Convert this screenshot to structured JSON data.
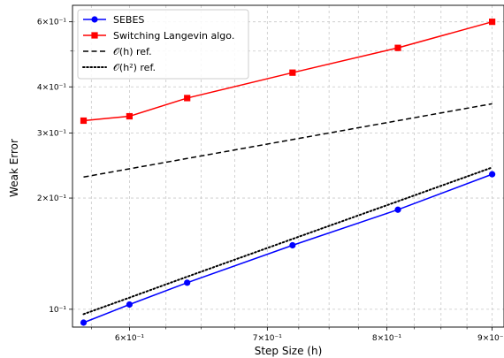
{
  "chart_data": {
    "type": "line",
    "xscale": "log",
    "yscale": "log",
    "xlabel": "Step Size (h)",
    "ylabel": "Weak Error",
    "xlim": [
      0.563,
      0.912
    ],
    "ylim": [
      0.0895,
      0.665
    ],
    "grid": true,
    "legend_position": "top-left",
    "x_ticks": [
      {
        "value": 0.6,
        "label": "6×10⁻¹"
      },
      {
        "value": 0.7,
        "label": "7×10⁻¹"
      },
      {
        "value": 0.8,
        "label": "8×10⁻¹"
      },
      {
        "value": 0.9,
        "label": "9×10⁻¹"
      }
    ],
    "y_ticks": [
      {
        "value": 0.1,
        "label": "10⁻¹"
      },
      {
        "value": 0.2,
        "label": "2×10⁻¹"
      },
      {
        "value": 0.3,
        "label": "3×10⁻¹"
      },
      {
        "value": 0.4,
        "label": "4×10⁻¹"
      },
      {
        "value": 0.6,
        "label": "6×10⁻¹"
      }
    ],
    "x_minor_grid": [
      0.575,
      0.625,
      0.65,
      0.675,
      0.725,
      0.75,
      0.775,
      0.825,
      0.85,
      0.875
    ],
    "y_minor_grid": [
      0.5
    ],
    "x": [
      0.57,
      0.6,
      0.64,
      0.72,
      0.81,
      0.9
    ],
    "series": [
      {
        "name": "SEBES",
        "color": "#0000ff",
        "marker": "circle",
        "dash": "solid",
        "values": [
          0.092,
          0.103,
          0.118,
          0.149,
          0.186,
          0.232
        ]
      },
      {
        "name": "Switching Langevin algo.",
        "color": "#ff0000",
        "marker": "square",
        "dash": "solid",
        "values": [
          0.324,
          0.333,
          0.373,
          0.437,
          0.51,
          0.6
        ]
      },
      {
        "name": "𝒪(h) ref.",
        "color": "#000000",
        "marker": "none",
        "dash": "dashed",
        "values": [
          0.228,
          0.24,
          0.256,
          0.288,
          0.324,
          0.36
        ]
      },
      {
        "name": "𝒪(h²) ref.",
        "color": "#000000",
        "marker": "none",
        "dash": "dotted",
        "values": [
          0.097,
          0.1075,
          0.1225,
          0.155,
          0.196,
          0.242
        ]
      }
    ]
  }
}
